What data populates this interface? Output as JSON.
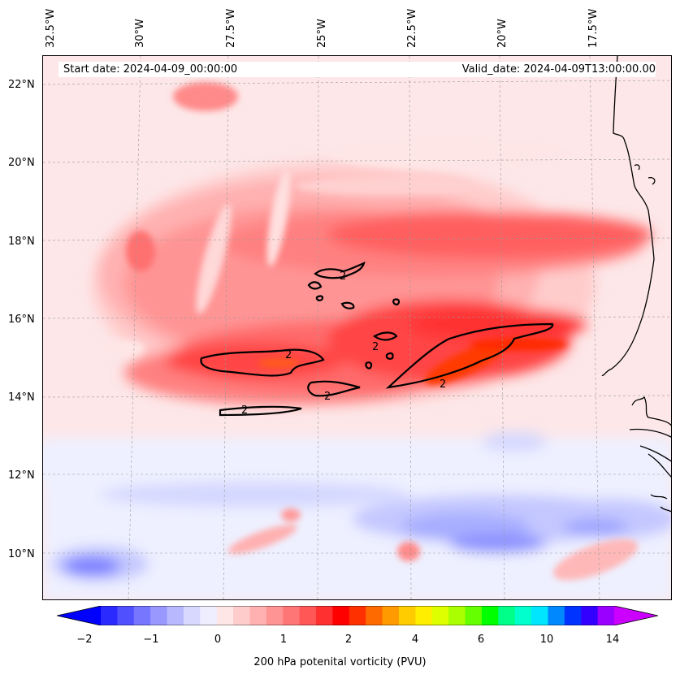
{
  "header": {
    "start_date": "Start date: 2024-04-09_00:00:00",
    "valid_date": "Valid_date: 2024-04-09T13:00:00.00"
  },
  "axes": {
    "lon_labels": [
      "32.5°W",
      "30°W",
      "27.5°W",
      "25°W",
      "22.5°W",
      "20°W",
      "17.5°W"
    ],
    "lat_labels": [
      "22°N",
      "20°N",
      "18°N",
      "16°N",
      "14°N",
      "12°N",
      "10°N"
    ]
  },
  "contours": {
    "label": "2"
  },
  "colorbar": {
    "label": "200 hPa potenital vorticity (PVU)",
    "ticks": [
      "−2",
      "−1",
      "0",
      "1",
      "2",
      "4",
      "6",
      "10",
      "14"
    ],
    "colors": [
      "#0000ff",
      "#2a2aff",
      "#5050ff",
      "#7676ff",
      "#9898ff",
      "#b8b8ff",
      "#d8d8ff",
      "#eeeeff",
      "#ffe6e6",
      "#ffcccc",
      "#ffb0b0",
      "#ff9494",
      "#ff7676",
      "#ff5656",
      "#ff3030",
      "#ff0000",
      "#ff3000",
      "#ff6a00",
      "#ff9a00",
      "#ffcc00",
      "#ffee00",
      "#ddff00",
      "#aaff00",
      "#66ff00",
      "#00ff00",
      "#00ff88",
      "#00ffcc",
      "#00e6ff",
      "#0088ff",
      "#0033ff",
      "#3300ff",
      "#9900ff",
      "#cc00ff"
    ]
  }
}
